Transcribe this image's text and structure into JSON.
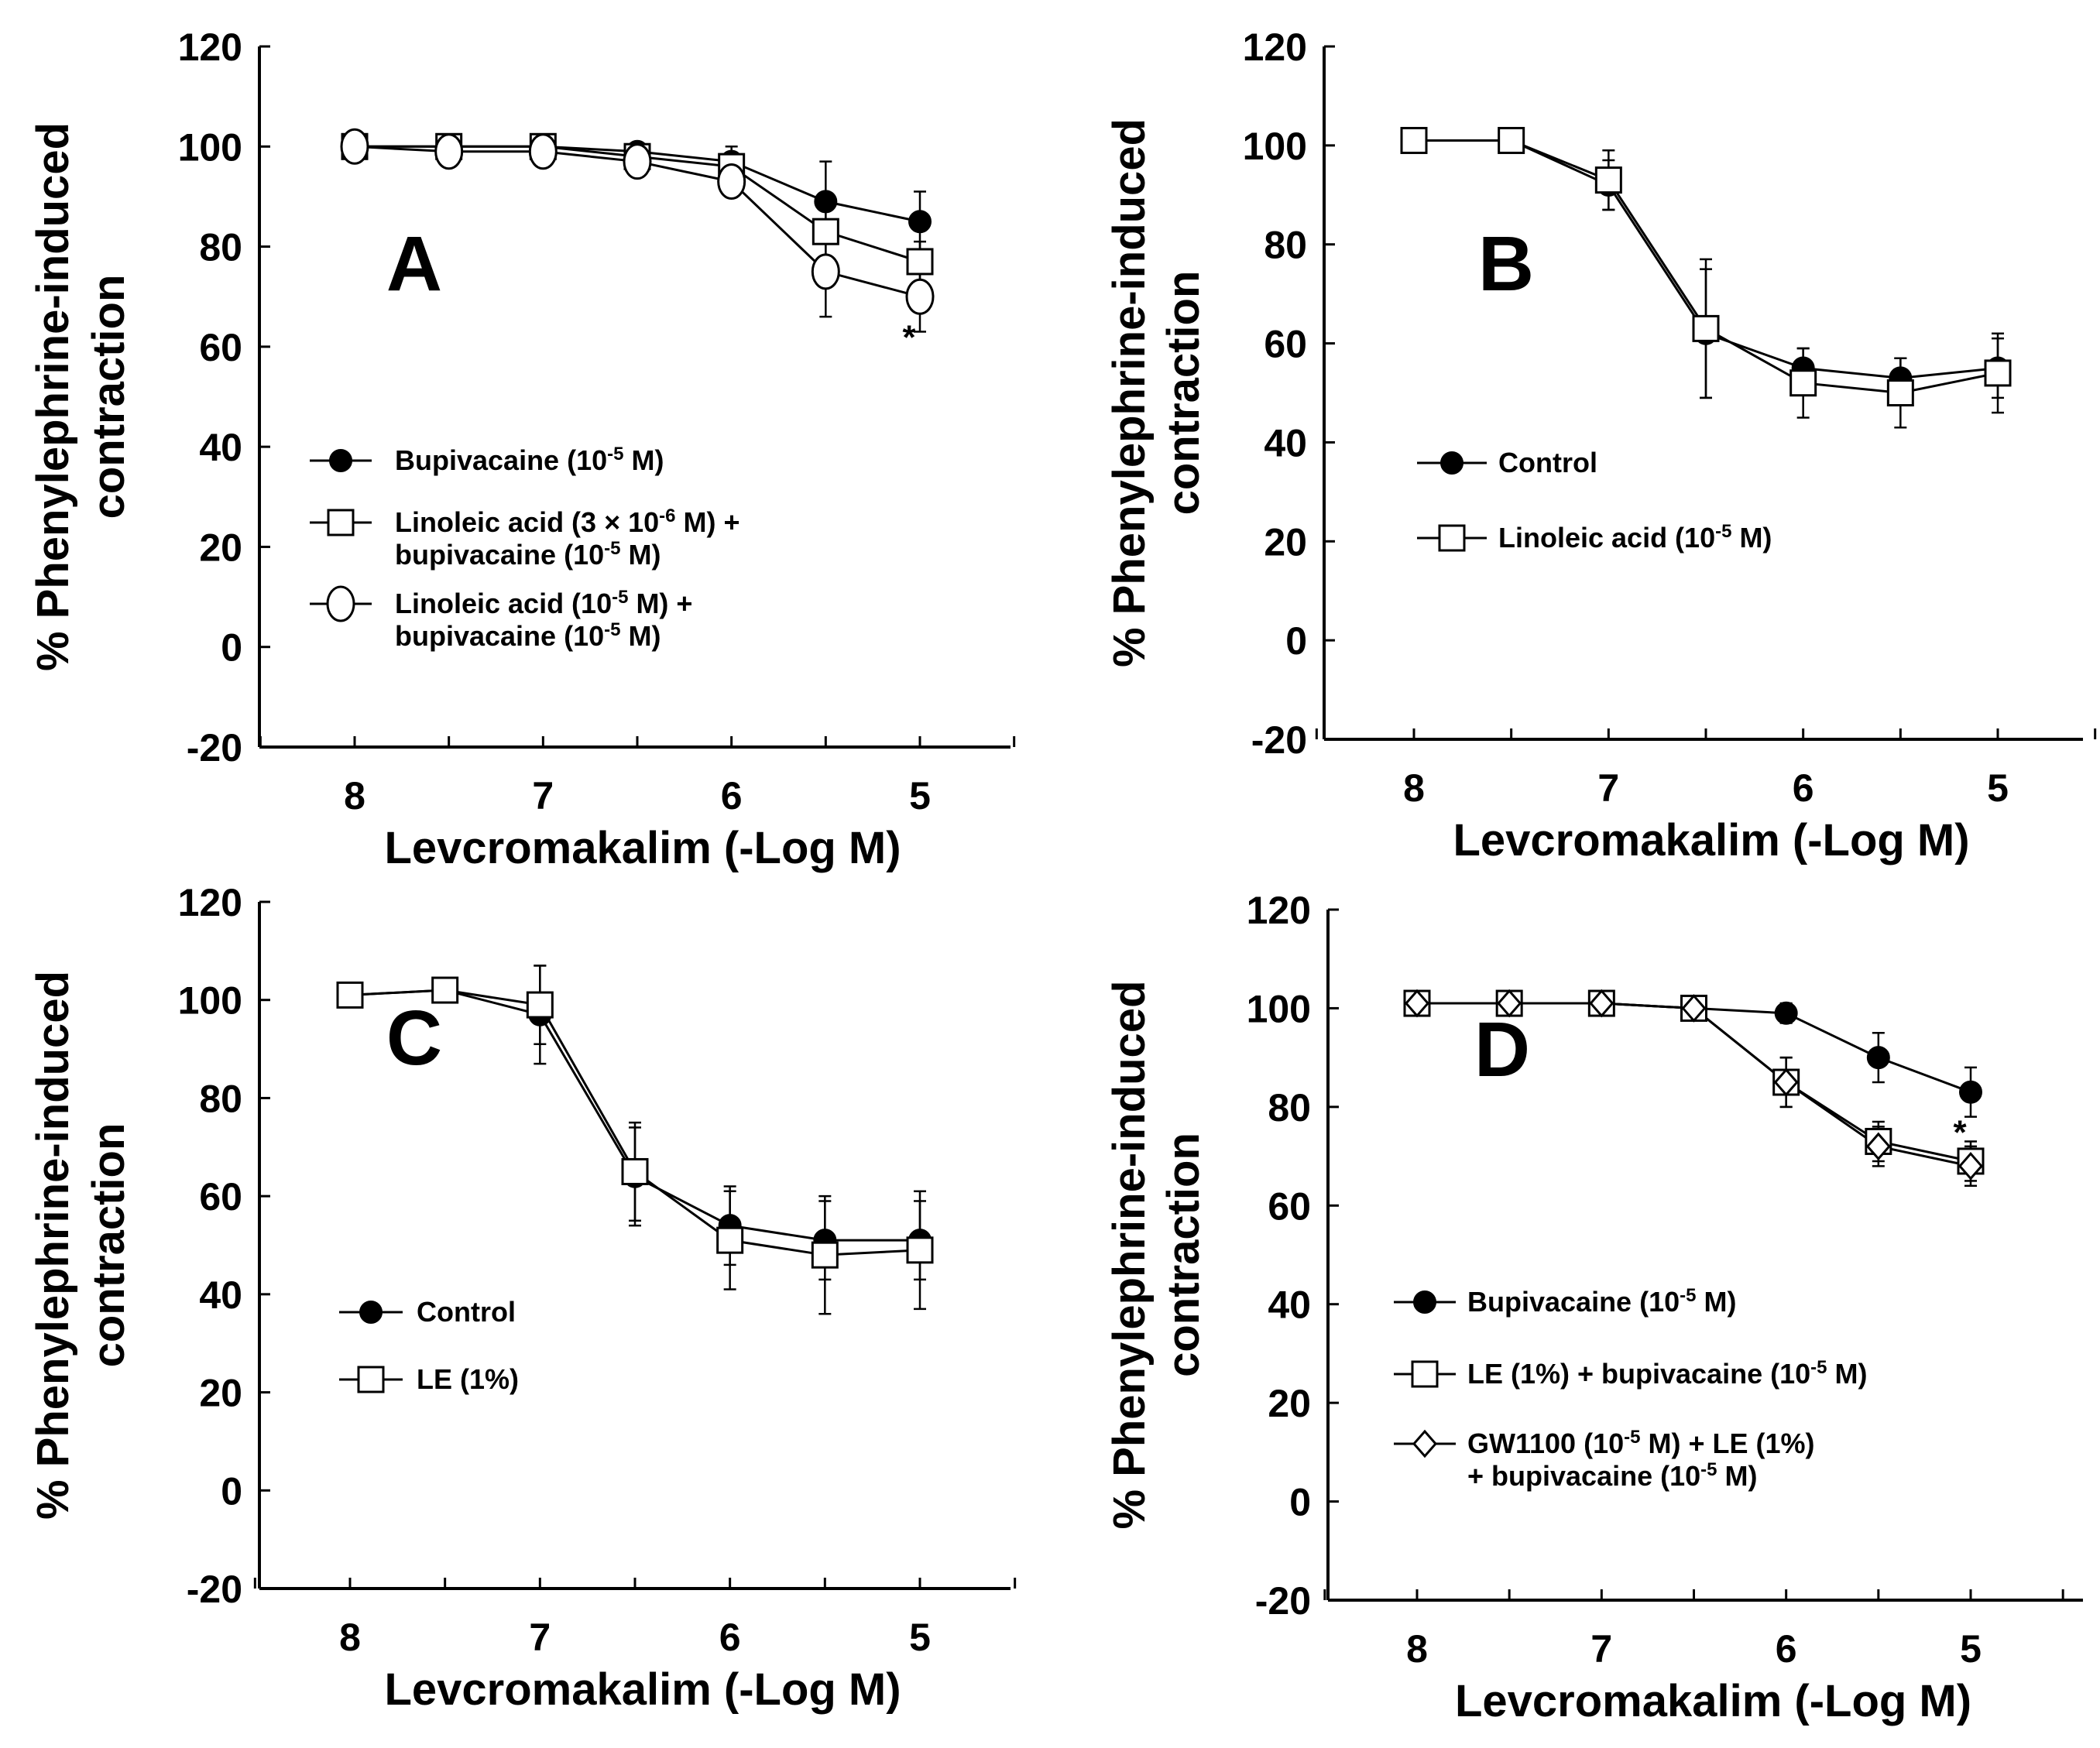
{
  "chart_data": [
    {
      "panel": "A",
      "type": "line",
      "xlabel": "Levcromakalim (-Log M)",
      "ylabel_line1": "% Phenylephrine-induced",
      "ylabel_line2": "contraction",
      "x": [
        8,
        7.5,
        7,
        6.5,
        6,
        5.5,
        5
      ],
      "xticks": [
        8,
        7,
        6,
        5
      ],
      "xlim": [
        8.5,
        4.5
      ],
      "yticks": [
        120,
        100,
        80,
        60,
        40,
        20,
        0,
        -20
      ],
      "ylim": [
        -20,
        120
      ],
      "series": [
        {
          "name": "Bupivacaine (10⁻⁵ M)",
          "marker": "filled-circle",
          "legend_lines": [
            "Bupivacaine (10⁻⁵ M)"
          ],
          "values": [
            100,
            100,
            100,
            99,
            97,
            89,
            85
          ],
          "errors": [
            1,
            1,
            1,
            1,
            3,
            8,
            6
          ]
        },
        {
          "name": "Linoleic acid (3 × 10⁻⁶ M) + bupivacaine (10⁻⁵ M)",
          "marker": "open-square",
          "legend_lines": [
            "Linoleic acid (3  × 10⁻⁶ M) +",
            "bupivacaine (10⁻⁵ M)"
          ],
          "values": [
            100,
            100,
            100,
            98,
            96,
            83,
            77
          ],
          "errors": [
            1,
            1,
            1,
            1,
            2,
            5,
            4
          ]
        },
        {
          "name": "Linoleic acid (10⁻⁵ M) + bupivacaine (10⁻⁵ M)",
          "marker": "open-circle",
          "legend_lines": [
            "Linoleic acid (10⁻⁵ M) +",
            "bupivacaine (10⁻⁵ M)"
          ],
          "values": [
            100,
            99,
            99,
            97,
            93,
            75,
            70
          ],
          "errors": [
            1,
            1,
            1,
            2,
            3,
            9,
            7
          ]
        }
      ],
      "annotations": [
        {
          "text": "*",
          "x": 5,
          "y": 63
        }
      ]
    },
    {
      "panel": "B",
      "type": "line",
      "xlabel": "Levcromakalim (-Log M)",
      "ylabel_line1": "% Phenylephrine-induced",
      "ylabel_line2": "contraction",
      "x": [
        8,
        7.5,
        7,
        6.5,
        6,
        5.5,
        5
      ],
      "xticks": [
        8,
        7,
        6,
        5
      ],
      "xlim": [
        8.5,
        4.5
      ],
      "yticks": [
        120,
        100,
        80,
        60,
        40,
        20,
        0,
        -20
      ],
      "ylim": [
        -20,
        120
      ],
      "series": [
        {
          "name": "Control",
          "marker": "filled-circle",
          "legend_lines": [
            "Control"
          ],
          "values": [
            101,
            101,
            92,
            62,
            55,
            53,
            55
          ],
          "errors": [
            1,
            1,
            5,
            13,
            4,
            4,
            6
          ]
        },
        {
          "name": "Linoleic acid (10⁻⁵ M)",
          "marker": "open-square",
          "legend_lines": [
            "Linoleic acid (10⁻⁵ M)"
          ],
          "values": [
            101,
            101,
            93,
            63,
            52,
            50,
            54
          ],
          "errors": [
            1,
            1,
            6,
            14,
            7,
            7,
            8
          ]
        }
      ],
      "annotations": []
    },
    {
      "panel": "C",
      "type": "line",
      "xlabel": "Levcromakalim (-Log M)",
      "ylabel_line1": "% Phenylephrine-induced",
      "ylabel_line2": "contraction",
      "x": [
        8,
        7.5,
        7,
        6.5,
        6,
        5.5,
        5
      ],
      "xticks": [
        8,
        7,
        6,
        5
      ],
      "xlim": [
        8.5,
        4.5
      ],
      "yticks": [
        120,
        100,
        80,
        60,
        40,
        20,
        0,
        -20
      ],
      "ylim": [
        -20,
        120
      ],
      "series": [
        {
          "name": "Control",
          "marker": "filled-circle",
          "legend_lines": [
            "Control"
          ],
          "values": [
            101,
            102,
            97,
            64,
            54,
            51,
            51
          ],
          "errors": [
            1,
            1,
            10,
            10,
            8,
            8,
            8
          ]
        },
        {
          "name": "LE (1%)",
          "marker": "open-square",
          "legend_lines": [
            "LE (1%)"
          ],
          "values": [
            101,
            102,
            99,
            65,
            51,
            48,
            49
          ],
          "errors": [
            2,
            2,
            8,
            10,
            10,
            12,
            12
          ]
        }
      ],
      "annotations": []
    },
    {
      "panel": "D",
      "type": "line",
      "xlabel": "Levcromakalim (-Log M)",
      "ylabel_line1": "% Phenylephrine-induced",
      "ylabel_line2": "contraction",
      "x": [
        8,
        7.5,
        7,
        6.5,
        6,
        5.5,
        5
      ],
      "xticks": [
        8,
        7,
        6,
        5
      ],
      "xlim": [
        8.5,
        4.5
      ],
      "yticks": [
        120,
        100,
        80,
        60,
        40,
        20,
        0,
        -20
      ],
      "ylim": [
        -20,
        120
      ],
      "series": [
        {
          "name": "Bupivacaine (10⁻⁵ M)",
          "marker": "filled-circle",
          "legend_lines": [
            "Bupivacaine (10⁻⁵ M)"
          ],
          "values": [
            101,
            101,
            101,
            100,
            99,
            90,
            83
          ],
          "errors": [
            1,
            1,
            1,
            1,
            2,
            5,
            5
          ]
        },
        {
          "name": "LE (1%) + bupivacaine (10⁻⁵ M)",
          "marker": "open-square",
          "legend_lines": [
            "LE (1%) + bupivacaine (10⁻⁵ M)"
          ],
          "values": [
            101,
            101,
            101,
            100,
            85,
            73,
            69
          ],
          "errors": [
            1,
            1,
            1,
            1,
            5,
            4,
            4
          ]
        },
        {
          "name": "GW1100 (10⁻⁵ M) + LE (1%) + bupivacaine (10⁻⁵ M)",
          "marker": "open-diamond",
          "legend_lines": [
            "GW1100 (10⁻⁵ M) + LE (1%)",
            "+ bupivacaine (10⁻⁵ M)"
          ],
          "values": [
            101,
            101,
            101,
            100,
            85,
            72,
            68
          ],
          "errors": [
            1,
            1,
            1,
            1,
            5,
            4,
            4
          ]
        }
      ],
      "annotations": [
        {
          "text": "*",
          "x": 5,
          "y": 76
        }
      ]
    }
  ]
}
